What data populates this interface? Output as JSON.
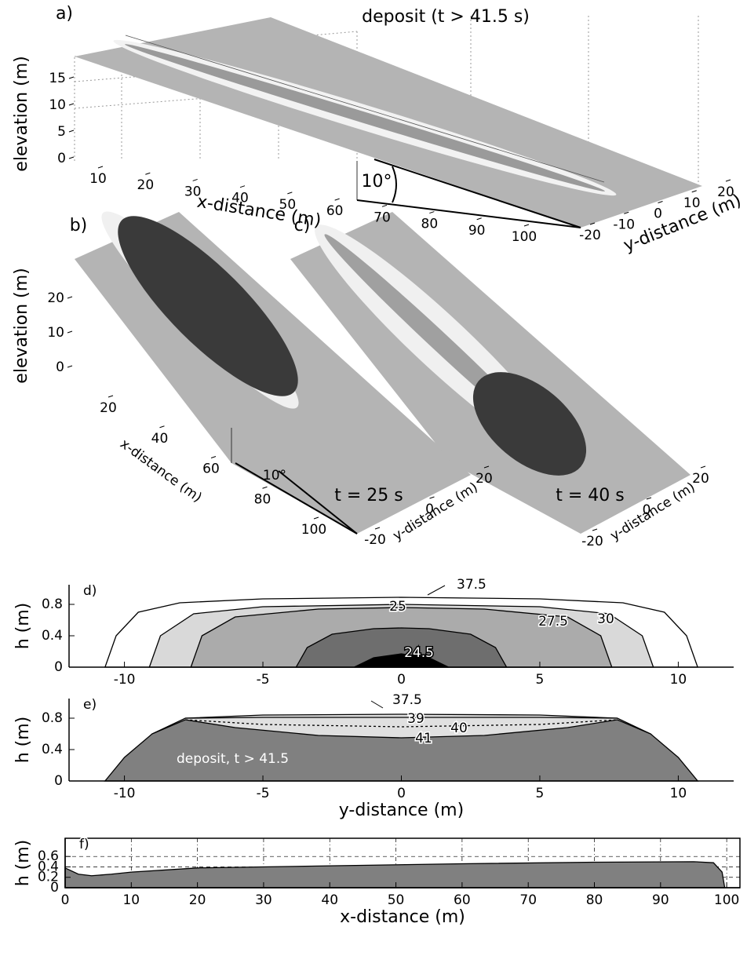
{
  "chart_data": [
    {
      "type": "surface3d",
      "panel_label": "a)",
      "title": "deposit (t > 41.5 s)",
      "zlabel": "elevation (m)",
      "xlabel": "x-distance (m)",
      "ylabel": "y-distance (m)",
      "zticks": [
        0,
        5,
        10,
        15
      ],
      "xticks": [
        10,
        20,
        30,
        40,
        50,
        60,
        70,
        80,
        90,
        100
      ],
      "yticks": [
        -20,
        -10,
        0,
        10,
        20
      ],
      "annotation": "10°"
    },
    {
      "type": "surface3d",
      "panel_label": "b)",
      "zlabel": "elevation (m)",
      "xlabel": "x-distance (m)",
      "ylabel": "y-distance (m)",
      "zticks": [
        0,
        10,
        20
      ],
      "xticks": [
        20,
        40,
        60,
        80,
        100
      ],
      "yticks": [
        -20,
        0,
        20
      ],
      "annotation": "10°",
      "time_label": "t = 25 s"
    },
    {
      "type": "surface3d",
      "panel_label": "c)",
      "ylabel": "y-distance (m)",
      "yticks": [
        -20,
        0,
        20
      ],
      "time_label": "t = 40 s"
    },
    {
      "type": "contour",
      "panel_label": "d)",
      "ylabel": "h (m)",
      "xlim": [
        -12,
        12
      ],
      "ylim": [
        0,
        1.05
      ],
      "xticks": [
        -10,
        -5,
        0,
        5,
        10
      ],
      "yticks": [
        0,
        0.4,
        0.8
      ],
      "series": [
        {
          "name": "37.5",
          "color": "#ffffff",
          "filled": true,
          "x": [
            -10.7,
            -10.3,
            -9.5,
            -8,
            -5,
            0,
            5,
            8,
            9.5,
            10.3,
            10.7
          ],
          "values": [
            0,
            0.4,
            0.7,
            0.82,
            0.87,
            0.89,
            0.87,
            0.82,
            0.7,
            0.4,
            0
          ]
        },
        {
          "name": "30",
          "color": "#d9d9d9",
          "filled": true,
          "x": [
            -9.1,
            -8.7,
            -7.5,
            -5,
            0,
            5,
            7.5,
            8.7,
            9.1
          ],
          "values": [
            0,
            0.4,
            0.68,
            0.77,
            0.8,
            0.77,
            0.68,
            0.4,
            0
          ]
        },
        {
          "name": "27.5",
          "color": "#ababab",
          "filled": true,
          "x": [
            -7.6,
            -7.2,
            -6,
            -3,
            0,
            3,
            6,
            7.2,
            7.6
          ],
          "values": [
            0,
            0.4,
            0.64,
            0.74,
            0.76,
            0.74,
            0.64,
            0.4,
            0
          ]
        },
        {
          "name": "25",
          "color": "#6e6e6e",
          "filled": true,
          "x": [
            -3.8,
            -3.4,
            -2.5,
            -1,
            0,
            1,
            2.5,
            3.4,
            3.8
          ],
          "values": [
            0,
            0.25,
            0.42,
            0.49,
            0.5,
            0.49,
            0.42,
            0.25,
            0
          ]
        },
        {
          "name": "24.5",
          "color": "#000000",
          "filled": true,
          "x": [
            -1.7,
            -1,
            0,
            1,
            1.7
          ],
          "values": [
            0,
            0.12,
            0.17,
            0.12,
            0
          ]
        }
      ]
    },
    {
      "type": "contour",
      "panel_label": "e)",
      "ylabel": "h (m)",
      "xlabel": "y-distance (m)",
      "xlim": [
        -12,
        12
      ],
      "ylim": [
        0,
        1.05
      ],
      "xticks": [
        -10,
        -5,
        0,
        5,
        10
      ],
      "yticks": [
        0,
        0.4,
        0.8
      ],
      "annotation": "deposit,  t > 41.5",
      "series": [
        {
          "name": "37.5",
          "color": "#e0e0e0",
          "filled": true,
          "x": [
            -10.7,
            -9,
            -7.8,
            -5,
            0,
            5,
            7.8,
            9,
            10.7
          ],
          "values": [
            0,
            0.6,
            0.8,
            0.84,
            0.85,
            0.84,
            0.8,
            0.6,
            0
          ]
        },
        {
          "name": "39",
          "color": "#000000",
          "filled": false,
          "x": [
            -7.8,
            -5,
            0,
            5,
            7.8
          ],
          "values": [
            0.8,
            0.81,
            0.81,
            0.81,
            0.8
          ]
        },
        {
          "name": "40",
          "color": "#000000",
          "filled": false,
          "line_style": "dashed",
          "x": [
            -7.8,
            -5,
            0,
            5,
            7.8
          ],
          "values": [
            0.78,
            0.72,
            0.69,
            0.72,
            0.78
          ]
        },
        {
          "name": "41",
          "color": "#808080",
          "filled": true,
          "x": [
            -10.7,
            -10,
            -9,
            -7.8,
            -6,
            -3,
            0,
            3,
            6,
            7.8,
            9,
            10,
            10.7
          ],
          "values": [
            0,
            0.3,
            0.6,
            0.78,
            0.68,
            0.58,
            0.55,
            0.58,
            0.68,
            0.78,
            0.6,
            0.3,
            0
          ]
        }
      ]
    },
    {
      "type": "area",
      "panel_label": "f)",
      "ylabel": "h (m)",
      "xlabel": "x-distance (m)",
      "xlim": [
        0,
        102
      ],
      "ylim": [
        0,
        0.95
      ],
      "xticks": [
        0,
        10,
        20,
        30,
        40,
        50,
        60,
        70,
        80,
        90,
        100
      ],
      "yticks": [
        0,
        0.2,
        0.4,
        0.6
      ],
      "grid": true,
      "color": "#808080",
      "x": [
        0,
        2,
        4,
        7,
        10,
        20,
        40,
        60,
        80,
        95,
        98,
        99.3,
        99.7
      ],
      "values": [
        0.38,
        0.26,
        0.23,
        0.26,
        0.3,
        0.38,
        0.42,
        0.46,
        0.49,
        0.5,
        0.48,
        0.3,
        0
      ]
    }
  ]
}
